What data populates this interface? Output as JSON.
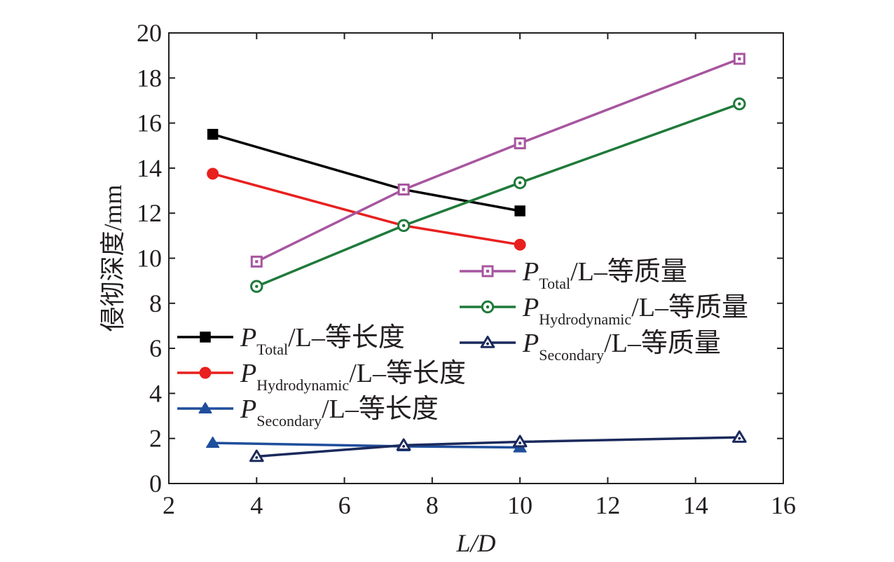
{
  "chart_data": {
    "type": "line",
    "xlabel": "L/D",
    "ylabel": "侵彻深度/mm",
    "xlim": [
      2,
      16
    ],
    "ylim": [
      0,
      20
    ],
    "xticks": [
      2,
      4,
      6,
      8,
      10,
      12,
      14,
      16
    ],
    "yticks": [
      0,
      2,
      4,
      6,
      8,
      10,
      12,
      14,
      16,
      18,
      20
    ],
    "grid": false,
    "series": [
      {
        "name": "PTotal/L–等长度",
        "label_main": "P",
        "label_sub": "Total",
        "label_tail": "/L–等长度",
        "color": "#000000",
        "marker": "square-filled",
        "x": [
          3,
          7.35,
          10
        ],
        "y": [
          15.5,
          13.05,
          12.1
        ]
      },
      {
        "name": "PHydrodynamic/L–等长度",
        "label_main": "P",
        "label_sub": "Hydrodynamic",
        "label_tail": "/L–等长度",
        "color": "#e8201e",
        "marker": "circle-filled",
        "x": [
          3,
          7.35,
          10
        ],
        "y": [
          13.75,
          11.45,
          10.6
        ]
      },
      {
        "name": "PSecondary/L–等长度",
        "label_main": "P",
        "label_sub": "Secondary",
        "label_tail": "/L–等长度",
        "color": "#1f4e9c",
        "marker": "triangle-filled",
        "x": [
          3,
          7.35,
          10
        ],
        "y": [
          1.8,
          1.65,
          1.6
        ]
      },
      {
        "name": "PTotal/L–等质量",
        "label_main": "P",
        "label_sub": "Total",
        "label_tail": "/L–等质量",
        "color": "#a7559f",
        "marker": "square-open",
        "x": [
          4,
          7.35,
          10,
          15
        ],
        "y": [
          9.85,
          13.05,
          15.1,
          18.85
        ]
      },
      {
        "name": "PHydrodynamic/L–等质量",
        "label_main": "P",
        "label_sub": "Hydrodynamic",
        "label_tail": "/L–等质量",
        "color": "#1f7a3a",
        "marker": "circle-open",
        "x": [
          4,
          7.35,
          10,
          15
        ],
        "y": [
          8.75,
          11.45,
          13.35,
          16.85
        ]
      },
      {
        "name": "PSecondary/L–等质量",
        "label_main": "P",
        "label_sub": "Secondary",
        "label_tail": "/L–等质量",
        "color": "#1b2a5c",
        "marker": "triangle-open",
        "x": [
          4,
          7.35,
          10,
          15
        ],
        "y": [
          1.2,
          1.7,
          1.85,
          2.05
        ]
      }
    ]
  }
}
